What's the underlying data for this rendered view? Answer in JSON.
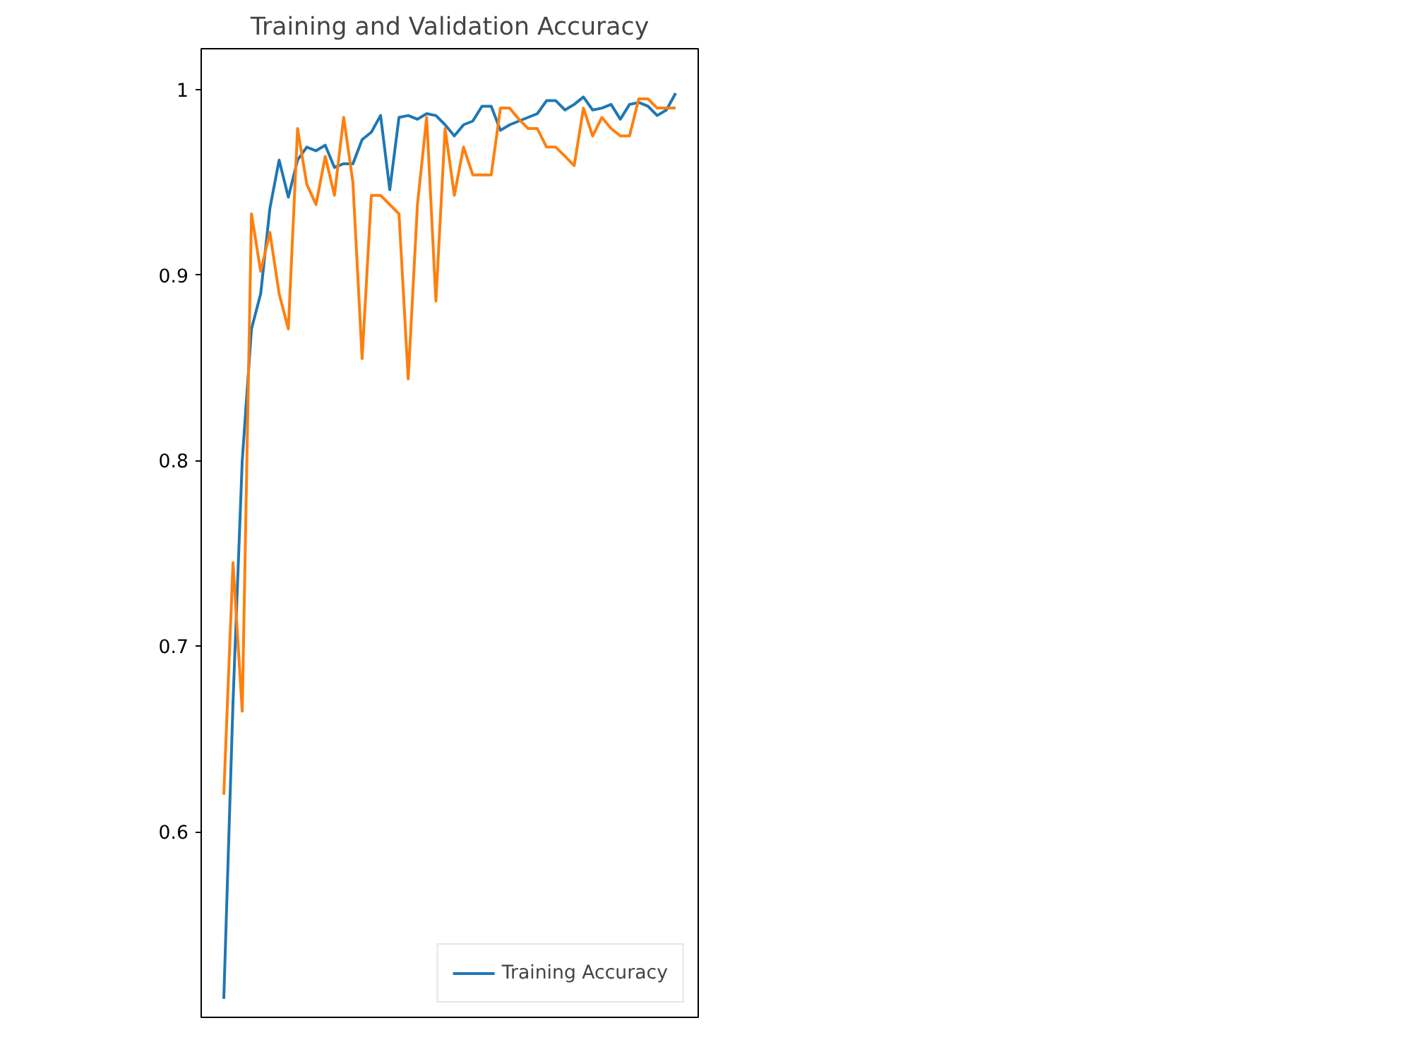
{
  "chart_data": {
    "type": "line",
    "title": "Training and Validation Accuracy",
    "categories": [
      null,
      null,
      null,
      null,
      null,
      null,
      null,
      null,
      null,
      null,
      null,
      null,
      null,
      null,
      null,
      null,
      null,
      null,
      null,
      null,
      null,
      null,
      null,
      null,
      null,
      null,
      null,
      null,
      null,
      null,
      null,
      null,
      null,
      null,
      null,
      null,
      null,
      null,
      null,
      null,
      null,
      null,
      null,
      null,
      null,
      null,
      null,
      null,
      null,
      null
    ],
    "series": [
      {
        "name": "Training Accuracy",
        "color": "#1f77b4",
        "values": [
          0.51,
          0.67,
          0.8,
          0.871,
          0.89,
          0.936,
          0.962,
          0.942,
          0.962,
          0.969,
          0.967,
          0.97,
          0.958,
          0.96,
          0.96,
          0.973,
          0.977,
          0.986,
          0.946,
          0.985,
          0.986,
          0.984,
          0.987,
          0.986,
          0.981,
          0.975,
          0.981,
          0.983,
          0.991,
          0.991,
          0.978,
          0.981,
          0.983,
          0.985,
          0.987,
          0.994,
          0.994,
          0.989,
          0.992,
          0.996,
          0.989,
          0.99,
          0.992,
          0.984,
          0.992,
          0.993,
          0.991,
          0.986,
          0.989,
          0.998
        ]
      },
      {
        "color": "#ff7f0e",
        "values": [
          0.62,
          0.745,
          0.665,
          0.933,
          0.902,
          0.923,
          0.89,
          0.871,
          0.979,
          0.949,
          0.938,
          0.964,
          0.943,
          0.985,
          0.95,
          0.855,
          0.943,
          0.943,
          0.938,
          0.933,
          0.844,
          0.938,
          0.985,
          0.886,
          0.979,
          0.943,
          0.969,
          0.954,
          0.954,
          0.954,
          0.99,
          0.99,
          0.984,
          0.979,
          0.979,
          0.969,
          0.969,
          0.964,
          0.959,
          0.99,
          0.975,
          0.985,
          0.979,
          0.975,
          0.975,
          0.995,
          0.995,
          0.99,
          0.99,
          0.99
        ]
      }
    ],
    "ylim": [
      0.5,
      1.022
    ],
    "yticks": [
      0.6,
      0.7,
      0.8,
      0.9,
      1.0
    ],
    "tick_labels": "y",
    "legend": "bottom right",
    "grid": false
  }
}
